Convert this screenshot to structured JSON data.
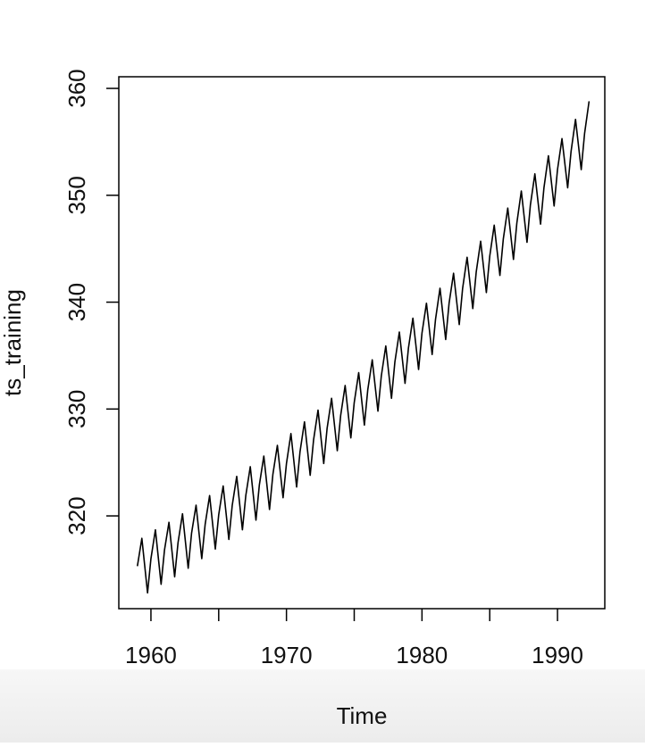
{
  "chart_data": {
    "type": "line",
    "xlabel": "Time",
    "ylabel": "ts_training",
    "x": [
      1959,
      1959.33,
      1959.75,
      1960,
      1960.33,
      1960.75,
      1961,
      1961.33,
      1961.75,
      1962,
      1962.33,
      1962.75,
      1963,
      1963.33,
      1963.75,
      1964,
      1964.33,
      1964.75,
      1965,
      1965.33,
      1965.75,
      1966,
      1966.33,
      1966.75,
      1967,
      1967.33,
      1967.75,
      1968,
      1968.33,
      1968.75,
      1969,
      1969.33,
      1969.75,
      1970,
      1970.33,
      1970.75,
      1971,
      1971.33,
      1971.75,
      1972,
      1972.33,
      1972.75,
      1973,
      1973.33,
      1973.75,
      1974,
      1974.33,
      1974.75,
      1975,
      1975.33,
      1975.75,
      1976,
      1976.33,
      1976.75,
      1977,
      1977.33,
      1977.75,
      1978,
      1978.33,
      1978.75,
      1979,
      1979.33,
      1979.75,
      1980,
      1980.33,
      1980.75,
      1981,
      1981.33,
      1981.75,
      1982,
      1982.33,
      1982.75,
      1983,
      1983.33,
      1983.75,
      1984,
      1984.33,
      1984.75,
      1985,
      1985.33,
      1985.75,
      1986,
      1986.33,
      1986.75,
      1987,
      1987.33,
      1987.75,
      1988,
      1988.33,
      1988.75,
      1989,
      1989.33,
      1989.75,
      1990,
      1990.33,
      1990.75,
      1991,
      1991.33,
      1991.75,
      1992,
      1992.33
    ],
    "series": [
      {
        "name": "ts_training",
        "color": "#000000",
        "values": [
          315.3,
          317.9,
          312.8,
          316.0,
          318.7,
          313.6,
          316.8,
          319.4,
          314.3,
          317.5,
          320.2,
          315.1,
          318.4,
          321.0,
          316.0,
          319.2,
          321.9,
          316.9,
          320.1,
          322.8,
          317.8,
          321.0,
          323.7,
          318.7,
          321.9,
          324.6,
          319.6,
          322.9,
          325.6,
          320.6,
          323.9,
          326.6,
          321.7,
          324.9,
          327.7,
          322.7,
          326.0,
          328.8,
          323.8,
          327.1,
          329.9,
          324.9,
          328.2,
          331.0,
          326.1,
          329.4,
          332.2,
          327.3,
          330.6,
          333.4,
          328.5,
          331.8,
          334.6,
          329.8,
          333.1,
          335.9,
          331.0,
          334.4,
          337.2,
          332.4,
          335.7,
          338.5,
          333.7,
          337.1,
          339.9,
          335.1,
          338.4,
          341.3,
          336.5,
          339.9,
          342.7,
          337.9,
          341.3,
          344.2,
          339.4,
          342.8,
          345.7,
          340.9,
          344.3,
          347.2,
          342.5,
          345.9,
          348.8,
          344.0,
          347.4,
          350.4,
          345.6,
          349.1,
          352.0,
          347.3,
          350.7,
          353.7,
          349.0,
          352.4,
          355.3,
          350.7,
          354.1,
          357.1,
          352.4,
          355.8,
          358.8
        ]
      }
    ],
    "xlim": [
      1957.63,
      1993.49
    ],
    "ylim": [
      311.32,
      361.09
    ],
    "xticks": [
      1960,
      1965,
      1970,
      1975,
      1980,
      1985,
      1990
    ],
    "yticks": [
      320,
      330,
      340,
      350,
      360
    ]
  }
}
